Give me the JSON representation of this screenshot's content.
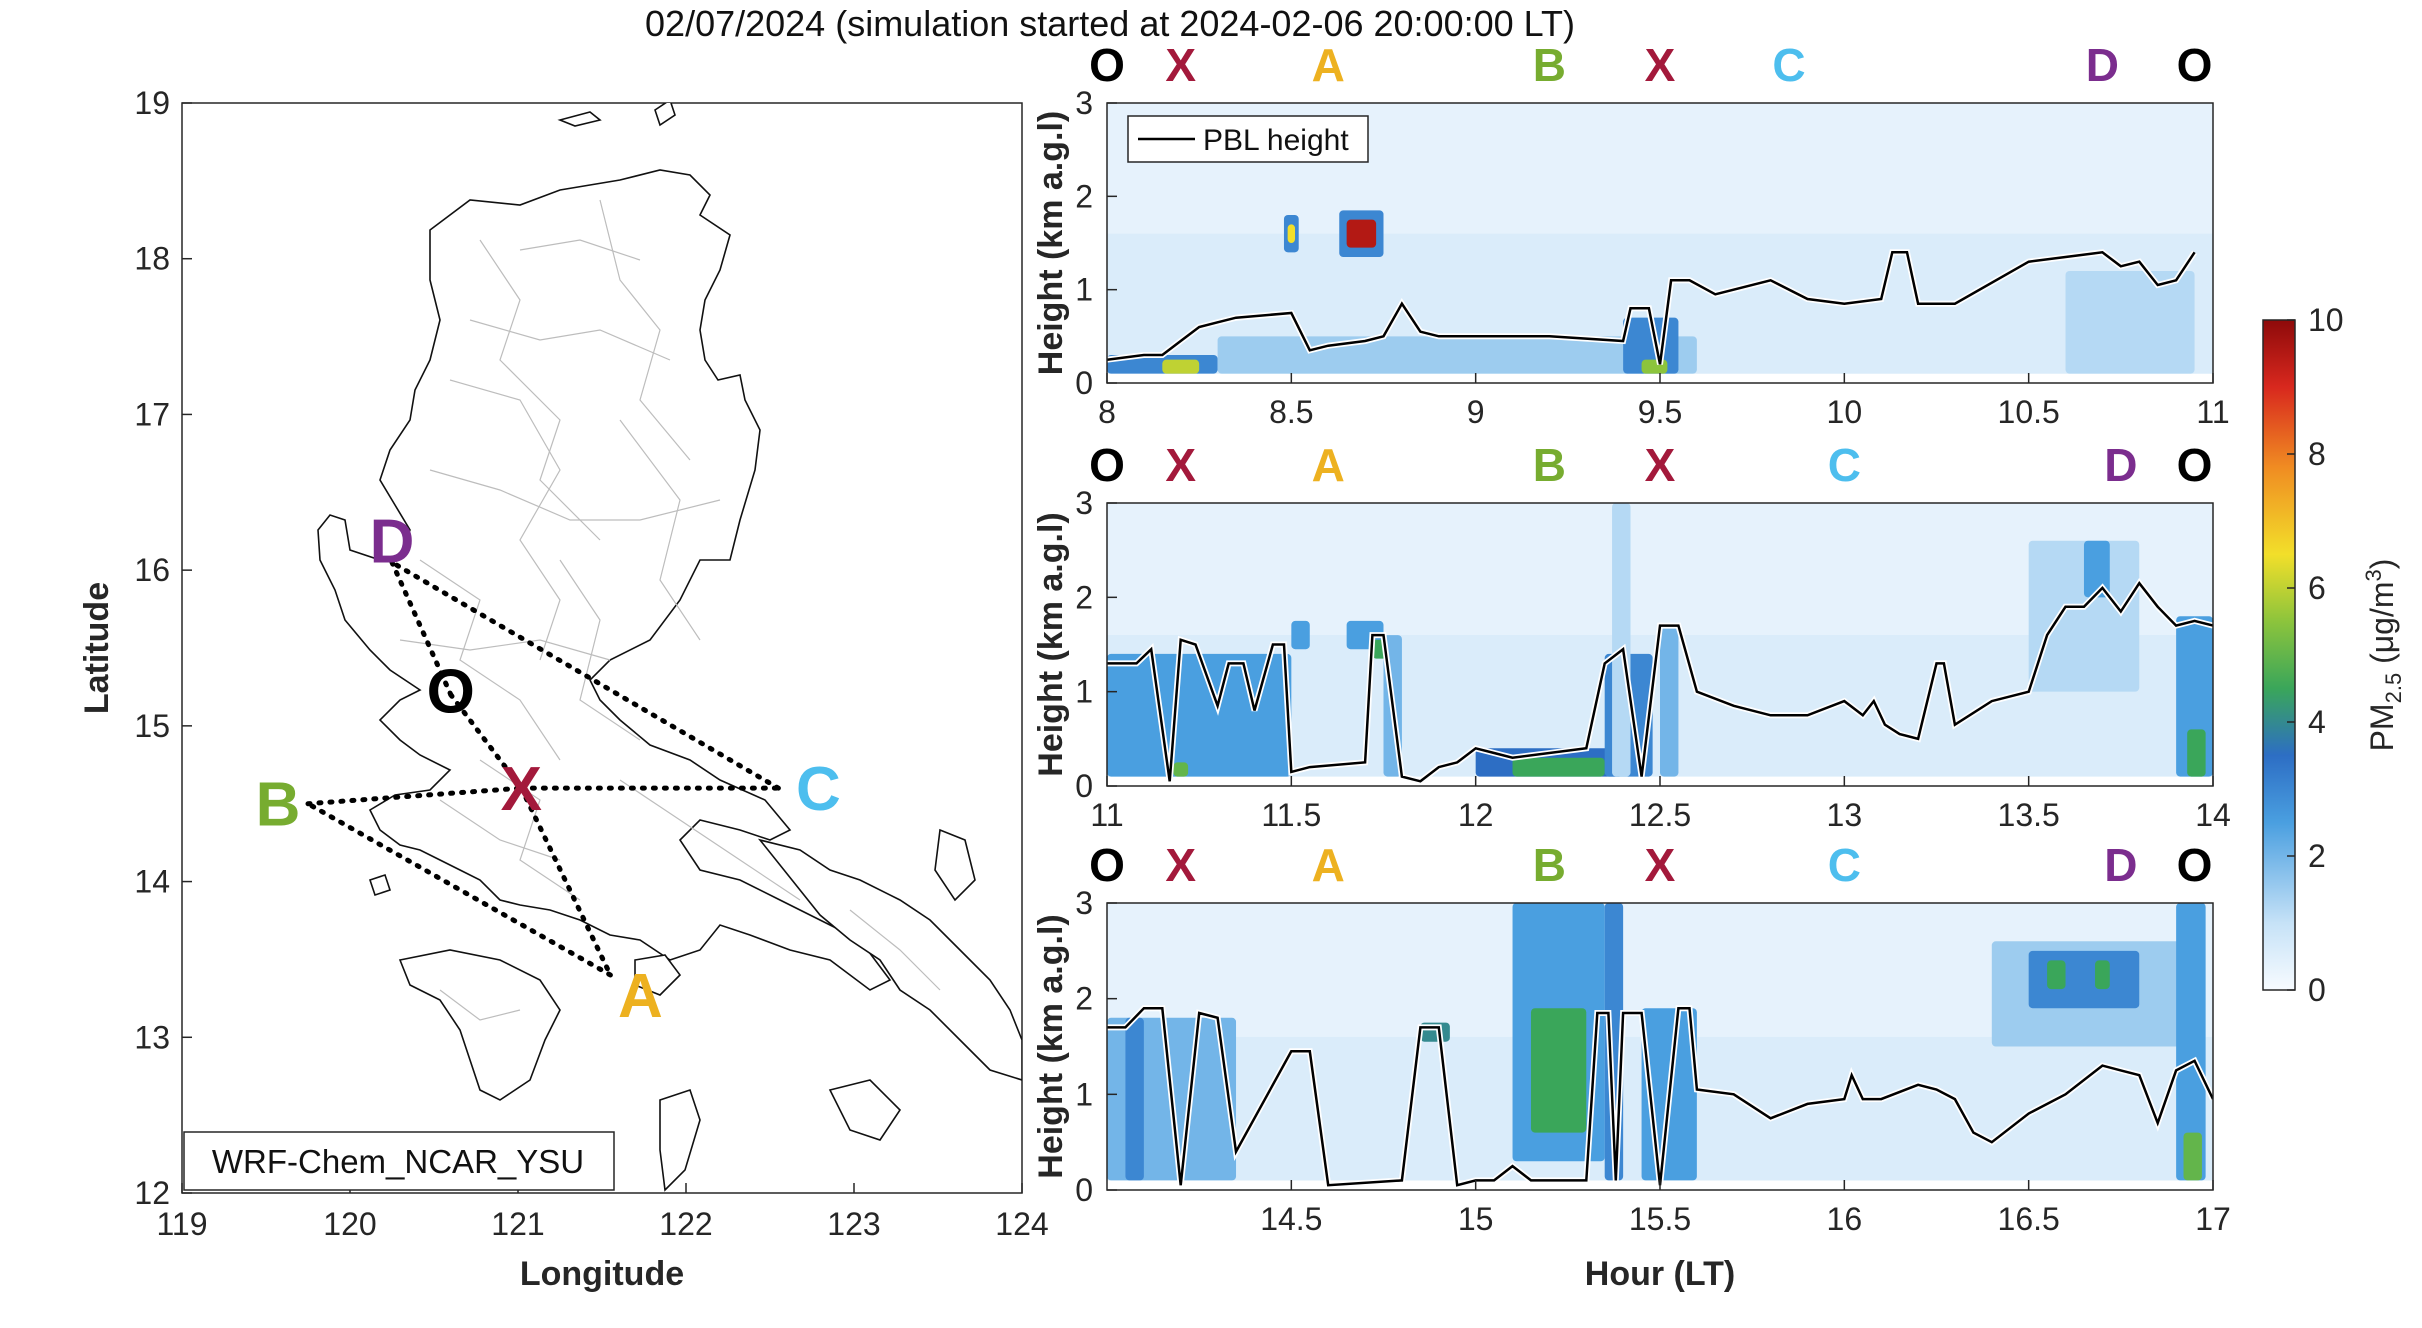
{
  "title": "02/07/2024 (simulation started at 2024-02-06 20:00:00 LT)",
  "map": {
    "xlabel": "Longitude",
    "ylabel": "Latitude",
    "xticks": [
      119,
      120,
      121,
      122,
      123,
      124
    ],
    "yticks": [
      12,
      13,
      14,
      15,
      16,
      17,
      18,
      19
    ],
    "xlim": [
      119,
      124
    ],
    "ylim": [
      12,
      19
    ],
    "model_label": "WRF-Chem_NCAR_YSU",
    "points": [
      {
        "label": "D",
        "lon": 120.25,
        "lat": 16.05,
        "color": "#7b2d8e"
      },
      {
        "label": "O",
        "lon": 120.6,
        "lat": 15.2,
        "color": "#000000"
      },
      {
        "label": "X",
        "lon": 121.02,
        "lat": 14.6,
        "color": "#a3193b"
      },
      {
        "label": "B",
        "lon": 119.75,
        "lat": 14.5,
        "color": "#77ac30"
      },
      {
        "label": "C",
        "lon": 122.55,
        "lat": 14.6,
        "color": "#4dbeee"
      },
      {
        "label": "A",
        "lon": 121.55,
        "lat": 13.4,
        "color": "#edb120"
      }
    ]
  },
  "waypoints": [
    {
      "label": "O",
      "color": "#000000"
    },
    {
      "label": "X",
      "color": "#a3193b"
    },
    {
      "label": "A",
      "color": "#edb120"
    },
    {
      "label": "B",
      "color": "#77ac30"
    },
    {
      "label": "X",
      "color": "#a3193b"
    },
    {
      "label": "C",
      "color": "#4dbeee"
    },
    {
      "label": "D",
      "color": "#7b2d8e"
    },
    {
      "label": "O",
      "color": "#000000"
    }
  ],
  "colorbar": {
    "label": "PM2.5 (μg/m3)",
    "ticks": [
      0,
      2,
      4,
      6,
      8,
      10
    ],
    "range": [
      0,
      10
    ]
  },
  "chart_data": [
    {
      "type": "heatmap",
      "ylabel": "Height (km a.g.l)",
      "xlabel": "",
      "legend": "PBL height",
      "xlim": [
        8,
        11
      ],
      "ylim": [
        0,
        3
      ],
      "xticks": [
        8,
        8.5,
        9,
        9.5,
        10,
        10.5,
        11
      ],
      "waypoint_hours": [
        8.0,
        8.2,
        8.6,
        9.2,
        9.5,
        9.85,
        10.7,
        10.95
      ],
      "pbl_height": {
        "x": [
          8.0,
          8.1,
          8.15,
          8.2,
          8.25,
          8.3,
          8.35,
          8.5,
          8.55,
          8.6,
          8.7,
          8.75,
          8.8,
          8.85,
          8.9,
          9.0,
          9.2,
          9.4,
          9.42,
          9.47,
          9.5,
          9.53,
          9.58,
          9.65,
          9.8,
          9.9,
          10.0,
          10.1,
          10.13,
          10.17,
          10.2,
          10.3,
          10.5,
          10.6,
          10.7,
          10.75,
          10.8,
          10.85,
          10.9,
          10.95
        ],
        "y": [
          0.25,
          0.3,
          0.3,
          0.45,
          0.6,
          0.65,
          0.7,
          0.75,
          0.35,
          0.4,
          0.45,
          0.5,
          0.85,
          0.55,
          0.5,
          0.5,
          0.5,
          0.45,
          0.8,
          0.8,
          0.2,
          1.1,
          1.1,
          0.95,
          1.1,
          0.9,
          0.85,
          0.9,
          1.4,
          1.4,
          0.85,
          0.85,
          1.3,
          1.35,
          1.4,
          1.25,
          1.3,
          1.05,
          1.1,
          1.4
        ]
      },
      "pm25_features": [
        {
          "x0": 8.0,
          "x1": 8.3,
          "y0": 0.1,
          "y1": 0.3,
          "value": 3
        },
        {
          "x0": 8.15,
          "x1": 8.25,
          "y0": 0.1,
          "y1": 0.25,
          "value": 6
        },
        {
          "x0": 8.3,
          "x1": 9.6,
          "y0": 0.1,
          "y1": 0.5,
          "value": 1.5
        },
        {
          "x0": 9.4,
          "x1": 9.55,
          "y0": 0.1,
          "y1": 0.7,
          "value": 3
        },
        {
          "x0": 9.45,
          "x1": 9.52,
          "y0": 0.1,
          "y1": 0.25,
          "value": 5.5
        },
        {
          "x0": 8.48,
          "x1": 8.52,
          "y0": 1.4,
          "y1": 1.8,
          "value": 3
        },
        {
          "x0": 8.49,
          "x1": 8.51,
          "y0": 1.5,
          "y1": 1.7,
          "value": 6.5
        },
        {
          "x0": 8.63,
          "x1": 8.75,
          "y0": 1.35,
          "y1": 1.85,
          "value": 3
        },
        {
          "x0": 8.65,
          "x1": 8.73,
          "y0": 1.45,
          "y1": 1.75,
          "value": 9.5
        },
        {
          "x0": 10.6,
          "x1": 10.95,
          "y0": 0.1,
          "y1": 1.2,
          "value": 1.2
        }
      ]
    },
    {
      "type": "heatmap",
      "ylabel": "Height (km a.g.l)",
      "xlabel": "",
      "legend": "",
      "xlim": [
        11,
        14
      ],
      "ylim": [
        0,
        3
      ],
      "xticks": [
        11,
        11.5,
        12,
        12.5,
        13,
        13.5,
        14
      ],
      "waypoint_hours": [
        11.0,
        11.2,
        11.6,
        12.2,
        12.5,
        13.0,
        13.75,
        13.95
      ],
      "pbl_height": {
        "x": [
          11.0,
          11.08,
          11.12,
          11.17,
          11.2,
          11.24,
          11.3,
          11.33,
          11.37,
          11.4,
          11.45,
          11.48,
          11.5,
          11.55,
          11.7,
          11.72,
          11.75,
          11.8,
          11.85,
          11.9,
          11.95,
          12.0,
          12.05,
          12.1,
          12.3,
          12.35,
          12.4,
          12.45,
          12.5,
          12.55,
          12.6,
          12.7,
          12.8,
          12.9,
          13.0,
          13.05,
          13.08,
          13.11,
          13.15,
          13.2,
          13.25,
          13.27,
          13.3,
          13.4,
          13.5,
          13.55,
          13.6,
          13.65,
          13.7,
          13.75,
          13.8,
          13.85,
          13.9,
          13.95,
          14.0
        ],
        "y": [
          1.3,
          1.3,
          1.45,
          0.05,
          1.55,
          1.5,
          0.85,
          1.3,
          1.3,
          0.8,
          1.5,
          1.5,
          0.15,
          0.2,
          0.25,
          1.6,
          1.6,
          0.1,
          0.05,
          0.2,
          0.25,
          0.4,
          0.35,
          0.3,
          0.4,
          1.3,
          1.45,
          0.1,
          1.7,
          1.7,
          1.0,
          0.85,
          0.75,
          0.75,
          0.9,
          0.75,
          0.9,
          0.65,
          0.55,
          0.5,
          1.3,
          1.3,
          0.65,
          0.9,
          1.0,
          1.6,
          1.9,
          1.9,
          2.1,
          1.85,
          2.15,
          1.9,
          1.7,
          1.75,
          1.7
        ]
      },
      "pm25_features": [
        {
          "x0": 11.0,
          "x1": 11.5,
          "y0": 0.1,
          "y1": 1.4,
          "value": 2.5
        },
        {
          "x0": 11.18,
          "x1": 11.22,
          "y0": 0.1,
          "y1": 0.25,
          "value": 5
        },
        {
          "x0": 11.5,
          "x1": 11.55,
          "y0": 1.45,
          "y1": 1.75,
          "value": 2.5
        },
        {
          "x0": 11.65,
          "x1": 11.75,
          "y0": 1.45,
          "y1": 1.75,
          "value": 2.5
        },
        {
          "x0": 11.72,
          "x1": 11.76,
          "y0": 1.35,
          "y1": 1.55,
          "value": 4.5
        },
        {
          "x0": 11.75,
          "x1": 11.8,
          "y0": 0.1,
          "y1": 1.6,
          "value": 2
        },
        {
          "x0": 12.0,
          "x1": 12.4,
          "y0": 0.1,
          "y1": 0.4,
          "value": 3.5
        },
        {
          "x0": 12.1,
          "x1": 12.35,
          "y0": 0.1,
          "y1": 0.3,
          "value": 4.5
        },
        {
          "x0": 12.35,
          "x1": 12.48,
          "y0": 0.1,
          "y1": 1.4,
          "value": 3
        },
        {
          "x0": 12.37,
          "x1": 12.42,
          "y0": 0.1,
          "y1": 3.0,
          "value": 1.2
        },
        {
          "x0": 12.5,
          "x1": 12.55,
          "y0": 0.1,
          "y1": 1.7,
          "value": 2
        },
        {
          "x0": 13.5,
          "x1": 13.8,
          "y0": 1.0,
          "y1": 2.6,
          "value": 1.2
        },
        {
          "x0": 13.65,
          "x1": 13.72,
          "y0": 2.0,
          "y1": 2.6,
          "value": 2.5
        },
        {
          "x0": 13.9,
          "x1": 14.0,
          "y0": 0.1,
          "y1": 1.8,
          "value": 2.5
        },
        {
          "x0": 13.93,
          "x1": 13.98,
          "y0": 0.1,
          "y1": 0.6,
          "value": 4.5
        }
      ]
    },
    {
      "type": "heatmap",
      "ylabel": "Height (km a.g.l)",
      "xlabel": "Hour (LT)",
      "legend": "",
      "xlim": [
        14,
        17
      ],
      "ylim": [
        0,
        3
      ],
      "xticks": [
        14.5,
        15,
        15.5,
        16,
        16.5,
        17
      ],
      "waypoint_hours": [
        14.0,
        14.2,
        14.6,
        15.2,
        15.5,
        16.0,
        16.75,
        16.95
      ],
      "pbl_height": {
        "x": [
          14.0,
          14.05,
          14.1,
          14.15,
          14.2,
          14.25,
          14.3,
          14.35,
          14.5,
          14.55,
          14.6,
          14.8,
          14.85,
          14.9,
          14.95,
          15.0,
          15.05,
          15.1,
          15.15,
          15.3,
          15.33,
          15.36,
          15.38,
          15.4,
          15.45,
          15.5,
          15.55,
          15.58,
          15.6,
          15.7,
          15.8,
          15.9,
          16.0,
          16.02,
          16.05,
          16.1,
          16.2,
          16.25,
          16.3,
          16.35,
          16.4,
          16.5,
          16.6,
          16.7,
          16.75,
          16.8,
          16.85,
          16.9,
          16.95,
          17.0
        ],
        "y": [
          1.7,
          1.7,
          1.9,
          1.9,
          0.05,
          1.85,
          1.8,
          0.4,
          1.45,
          1.45,
          0.05,
          0.1,
          1.7,
          1.7,
          0.05,
          0.1,
          0.1,
          0.25,
          0.1,
          0.1,
          1.85,
          1.85,
          0.1,
          1.85,
          1.85,
          0.05,
          1.9,
          1.9,
          1.05,
          1.0,
          0.75,
          0.9,
          0.95,
          1.2,
          0.95,
          0.95,
          1.1,
          1.05,
          0.95,
          0.6,
          0.5,
          0.8,
          1.0,
          1.3,
          1.25,
          1.2,
          0.7,
          1.25,
          1.35,
          0.95
        ]
      },
      "pm25_features": [
        {
          "x0": 14.0,
          "x1": 14.35,
          "y0": 0.1,
          "y1": 1.8,
          "value": 2
        },
        {
          "x0": 14.05,
          "x1": 14.1,
          "y0": 0.1,
          "y1": 1.8,
          "value": 3
        },
        {
          "x0": 14.85,
          "x1": 14.93,
          "y0": 1.55,
          "y1": 1.75,
          "value": 4
        },
        {
          "x0": 15.1,
          "x1": 15.35,
          "y0": 0.3,
          "y1": 3.0,
          "value": 2.5
        },
        {
          "x0": 15.15,
          "x1": 15.3,
          "y0": 0.6,
          "y1": 1.9,
          "value": 4.5
        },
        {
          "x0": 15.35,
          "x1": 15.4,
          "y0": 0.1,
          "y1": 3.0,
          "value": 3
        },
        {
          "x0": 15.45,
          "x1": 15.6,
          "y0": 0.1,
          "y1": 1.9,
          "value": 2.5
        },
        {
          "x0": 16.4,
          "x1": 16.95,
          "y0": 1.5,
          "y1": 2.6,
          "value": 1.5
        },
        {
          "x0": 16.5,
          "x1": 16.8,
          "y0": 1.9,
          "y1": 2.5,
          "value": 3
        },
        {
          "x0": 16.55,
          "x1": 16.6,
          "y0": 2.1,
          "y1": 2.4,
          "value": 4.5
        },
        {
          "x0": 16.68,
          "x1": 16.72,
          "y0": 2.1,
          "y1": 2.4,
          "value": 4.5
        },
        {
          "x0": 16.9,
          "x1": 16.98,
          "y0": 0.1,
          "y1": 3.0,
          "value": 2.5
        },
        {
          "x0": 16.92,
          "x1": 16.97,
          "y0": 0.1,
          "y1": 0.6,
          "value": 5
        }
      ]
    }
  ]
}
